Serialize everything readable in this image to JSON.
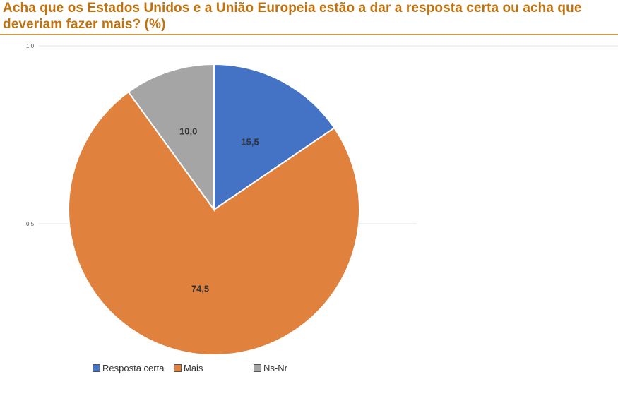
{
  "title": "Acha que os Estados Unidos e a União Europeia estão a dar a resposta certa ou acha que deveriam fazer mais? (%)",
  "chart_data": {
    "type": "pie",
    "title": "Acha que os Estados Unidos e a União Europeia estão a dar a resposta certa ou acha que deveriam fazer mais? (%)",
    "categories": [
      "Resposta certa",
      "Mais",
      "Ns-Nr"
    ],
    "values": [
      15.5,
      74.5,
      10.0
    ],
    "value_labels": [
      "15,5",
      "74,5",
      "10,0"
    ],
    "colors": [
      "#4472c4",
      "#e0823d",
      "#a5a5a5"
    ],
    "axis_ticks": [
      "1,0",
      "0,5"
    ],
    "legend_position": "bottom-left",
    "grid": true
  }
}
